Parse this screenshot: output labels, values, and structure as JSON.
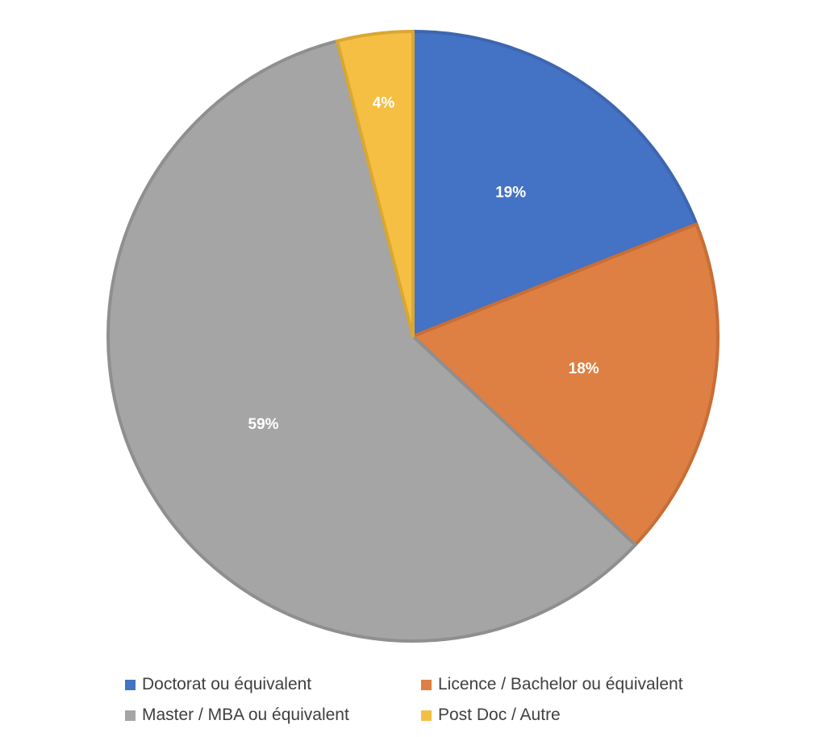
{
  "chart_data": {
    "type": "pie",
    "title": "",
    "start_angle_deg": 0,
    "direction": "clockwise",
    "legend_position": "bottom",
    "slices": [
      {
        "name": "Doctorat ou équivalent",
        "value": 19,
        "label": "19%",
        "color": "#4472C4",
        "stroke": "#3E66B0"
      },
      {
        "name": "Licence / Bachelor ou équivalent",
        "value": 18,
        "label": "18%",
        "color": "#DE7F43",
        "stroke": "#C86E36"
      },
      {
        "name": "Master / MBA ou équivalent",
        "value": 59,
        "label": "59%",
        "color": "#A5A5A5",
        "stroke": "#8F8F8F"
      },
      {
        "name": "Post Doc / Autre",
        "value": 4,
        "label": "4%",
        "color": "#F4BF42",
        "stroke": "#D9A733"
      }
    ]
  }
}
